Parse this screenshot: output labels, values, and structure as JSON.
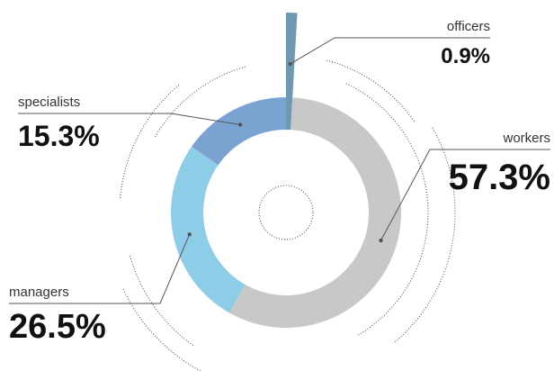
{
  "chart_data": {
    "type": "pie",
    "variant": "donut",
    "series": [
      {
        "name": "officers",
        "value": 0.9,
        "value_label": "0.9%",
        "color": "#6f98b3"
      },
      {
        "name": "workers",
        "value": 57.3,
        "value_label": "57.3%",
        "color": "#c8c8c8"
      },
      {
        "name": "managers",
        "value": 26.5,
        "value_label": "26.5%",
        "color": "#8ecde8"
      },
      {
        "name": "specialists",
        "value": 15.3,
        "value_label": "15.3%",
        "color": "#7aa3d1"
      }
    ],
    "legend": "none",
    "grid": false
  }
}
